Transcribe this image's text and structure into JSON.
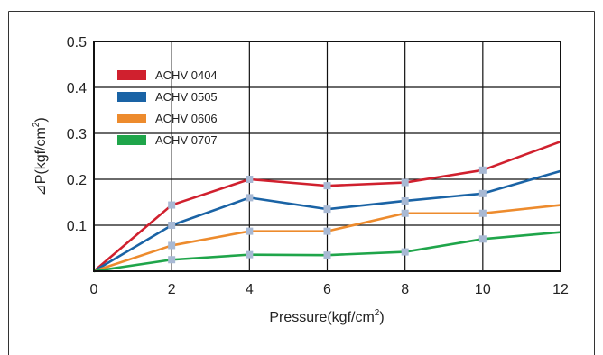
{
  "chart_data": {
    "type": "line",
    "xlabel": "Pressure(kgf/cm",
    "xlabel_sup": "2",
    "xlabel_tail": ")",
    "ylabel": "⊿P(kgf/cm",
    "ylabel_sup": "2",
    "ylabel_tail": ")",
    "xlim": [
      0,
      12
    ],
    "ylim": [
      0,
      0.5
    ],
    "x_ticks": [
      "0",
      "2",
      "4",
      "6",
      "8",
      "10",
      "12"
    ],
    "y_ticks": [
      "0.5",
      "0.4",
      "0.3",
      "0.2",
      "0.1"
    ],
    "grid": true,
    "legend_position": "top-left",
    "series": [
      {
        "name": "ACHV 0404",
        "color": "#d0202e",
        "x": [
          0,
          2,
          4,
          6,
          8,
          10,
          12
        ],
        "y": [
          0,
          0.144,
          0.2,
          0.186,
          0.193,
          0.22,
          0.282
        ]
      },
      {
        "name": "ACHV 0505",
        "color": "#1a63a5",
        "x": [
          0,
          2,
          4,
          6,
          8,
          10,
          12
        ],
        "y": [
          0,
          0.1,
          0.16,
          0.135,
          0.153,
          0.169,
          0.218
        ]
      },
      {
        "name": "ACHV 0606",
        "color": "#ed8b2d",
        "x": [
          0,
          2,
          4,
          6,
          8,
          10,
          12
        ],
        "y": [
          0,
          0.056,
          0.087,
          0.087,
          0.126,
          0.126,
          0.144
        ]
      },
      {
        "name": "ACHV 0707",
        "color": "#1fa54a",
        "x": [
          0,
          2,
          4,
          6,
          8,
          10,
          12
        ],
        "y": [
          0,
          0.025,
          0.036,
          0.035,
          0.042,
          0.07,
          0.085
        ]
      }
    ],
    "marker_color": "#a8b9d4"
  }
}
